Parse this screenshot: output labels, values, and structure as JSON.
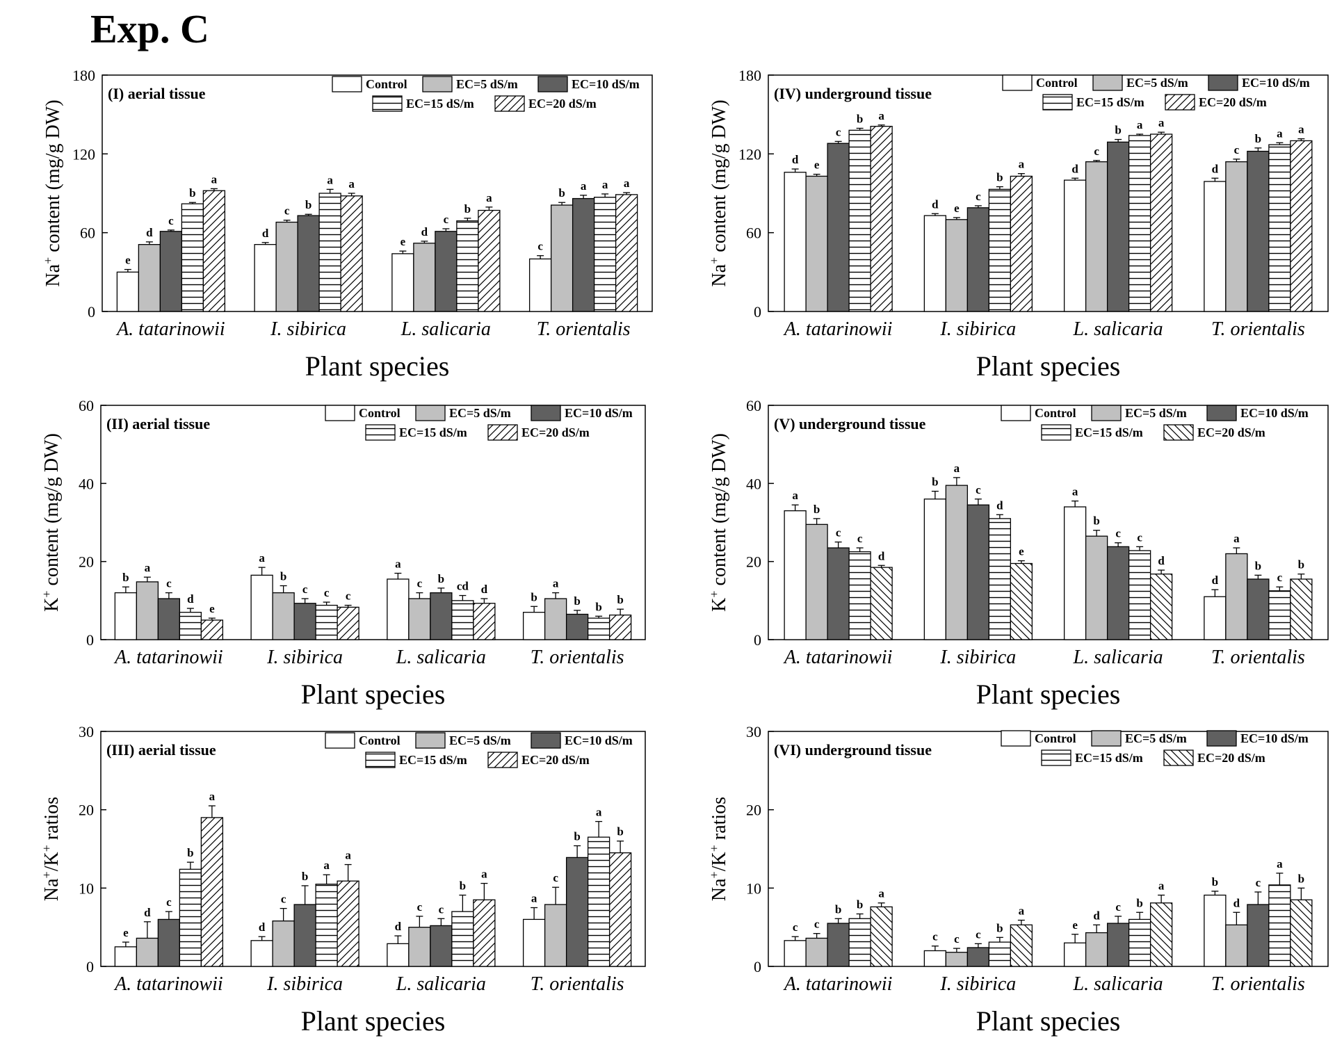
{
  "figure_title": "Exp. C",
  "colors": {
    "control": "#ffffff",
    "ec5": "#c0c0c0",
    "ec10": "#606060",
    "ec15": "#ffffff",
    "ec20": "#ffffff",
    "stroke": "#000000"
  },
  "chart_data": [
    {
      "id": "I",
      "type": "bar",
      "title": "(I) aerial tissue",
      "xlabel": "Plant species",
      "ylabel": "Na+ content (mg/g DW)",
      "ylabel_parts": {
        "prefix": "Na",
        "sup": "+",
        "rest": " content (mg/g DW)"
      },
      "ylim": [
        0,
        180
      ],
      "yticks": [
        0,
        60,
        120,
        180
      ],
      "legend_position": "top-right",
      "categories": [
        "A. tatarinowii",
        "I. sibirica",
        "L. salicaria",
        "T. orientalis"
      ],
      "series": [
        {
          "name": "Control",
          "pattern": "control",
          "values": [
            30,
            51,
            44,
            40
          ],
          "errors": [
            2,
            1.5,
            2,
            2.5
          ],
          "letters": [
            "e",
            "d",
            "e",
            "c"
          ]
        },
        {
          "name": "EC=5 dS/m",
          "pattern": "ec5",
          "values": [
            51,
            68,
            52,
            81
          ],
          "errors": [
            2,
            1.5,
            1.5,
            2
          ],
          "letters": [
            "d",
            "c",
            "d",
            "b"
          ]
        },
        {
          "name": "EC=10 dS/m",
          "pattern": "ec10",
          "values": [
            61,
            73,
            61,
            86
          ],
          "errors": [
            1,
            1,
            2,
            2.5
          ],
          "letters": [
            "c",
            "b",
            "c",
            "a"
          ]
        },
        {
          "name": "EC=15 dS/m",
          "pattern": "ec15",
          "values": [
            82,
            90,
            69,
            87
          ],
          "errors": [
            1,
            3,
            2,
            2.5
          ],
          "letters": [
            "b",
            "a",
            "b",
            "a"
          ]
        },
        {
          "name": "EC=20 dS/m",
          "pattern": "ec20",
          "values": [
            92,
            88,
            77,
            89
          ],
          "errors": [
            1.5,
            2,
            2.5,
            1.5
          ],
          "letters": [
            "a",
            "a",
            "a",
            "a"
          ]
        }
      ]
    },
    {
      "id": "II",
      "type": "bar",
      "title": "(II) aerial tissue",
      "xlabel": "Plant species",
      "ylabel": "K+ content (mg/g DW)",
      "ylabel_parts": {
        "prefix": "K",
        "sup": "+",
        "rest": " content (mg/g DW)"
      },
      "ylim": [
        0,
        60
      ],
      "yticks": [
        0,
        20,
        40,
        60
      ],
      "legend_position": "top-right",
      "categories": [
        "A. tatarinowii",
        "I. sibirica",
        "L. salicaria",
        "T. orientalis"
      ],
      "series": [
        {
          "name": "Control",
          "pattern": "control",
          "values": [
            12,
            16.5,
            15.5,
            7
          ],
          "errors": [
            1.5,
            2,
            1.5,
            1.5
          ],
          "letters": [
            "b",
            "a",
            "a",
            "b"
          ]
        },
        {
          "name": "EC=5 dS/m",
          "pattern": "ec5",
          "values": [
            14.8,
            12,
            10.5,
            10.5
          ],
          "errors": [
            1.2,
            1.8,
            1.5,
            1.5
          ],
          "letters": [
            "a",
            "b",
            "c",
            "a"
          ]
        },
        {
          "name": "EC=10 dS/m",
          "pattern": "ec10",
          "values": [
            10.5,
            9.3,
            12,
            6.5
          ],
          "errors": [
            1.5,
            1.2,
            1.2,
            1
          ],
          "letters": [
            "c",
            "c",
            "b",
            "b"
          ]
        },
        {
          "name": "EC=15 dS/m",
          "pattern": "ec15",
          "values": [
            7,
            8.8,
            10,
            5.5
          ],
          "errors": [
            1,
            0.8,
            1.3,
            0.5
          ],
          "letters": [
            "d",
            "c",
            "cd",
            "b"
          ]
        },
        {
          "name": "EC=20 dS/m",
          "pattern": "ec20",
          "values": [
            5,
            8.3,
            9.3,
            6.3
          ],
          "errors": [
            0.5,
            0.5,
            1.2,
            1.5
          ],
          "letters": [
            "e",
            "c",
            "d",
            "b"
          ]
        }
      ]
    },
    {
      "id": "III",
      "type": "bar",
      "title": "(III) aerial tissue",
      "xlabel": "Plant species",
      "ylabel": "Na+/K+ ratios",
      "ylabel_parts": {
        "prefix": "Na",
        "sup": "+",
        "rest": "/K",
        "sup2": "+",
        "rest2": " ratios"
      },
      "ylim": [
        0,
        30
      ],
      "yticks": [
        0,
        10,
        20,
        30
      ],
      "legend_position": "top-right",
      "categories": [
        "A. tatarinowii",
        "I. sibirica",
        "L. salicaria",
        "T. orientalis"
      ],
      "series": [
        {
          "name": "Control",
          "pattern": "control",
          "values": [
            2.5,
            3.3,
            2.9,
            6
          ],
          "errors": [
            0.6,
            0.5,
            1,
            1.5
          ],
          "letters": [
            "e",
            "d",
            "d",
            "a"
          ]
        },
        {
          "name": "EC=5 dS/m",
          "pattern": "ec5",
          "values": [
            3.6,
            5.8,
            5,
            7.9
          ],
          "errors": [
            2.1,
            1.6,
            1.4,
            2.2
          ],
          "letters": [
            "d",
            "c",
            "c",
            "c"
          ]
        },
        {
          "name": "EC=10 dS/m",
          "pattern": "ec10",
          "values": [
            6,
            7.9,
            5.2,
            13.9
          ],
          "errors": [
            1,
            2.4,
            0.9,
            1.5
          ],
          "letters": [
            "c",
            "b",
            "c",
            "b"
          ]
        },
        {
          "name": "EC=15 dS/m",
          "pattern": "ec15",
          "values": [
            12.4,
            10.5,
            7,
            16.5
          ],
          "errors": [
            0.9,
            1.2,
            2.1,
            2
          ],
          "letters": [
            "b",
            "a",
            "b",
            "a"
          ]
        },
        {
          "name": "EC=20 dS/m",
          "pattern": "ec20",
          "values": [
            19,
            10.9,
            8.5,
            14.5
          ],
          "errors": [
            1.5,
            2.1,
            2.1,
            1.5
          ],
          "letters": [
            "a",
            "a",
            "a",
            "b"
          ]
        }
      ]
    },
    {
      "id": "IV",
      "type": "bar",
      "title": "(IV) underground tissue",
      "xlabel": "Plant species",
      "ylabel": "Na+ content (mg/g DW)",
      "ylabel_parts": {
        "prefix": "Na",
        "sup": "+",
        "rest": " content (mg/g DW)"
      },
      "ylim": [
        0,
        180
      ],
      "yticks": [
        0,
        60,
        120,
        180
      ],
      "legend_position": "top-right",
      "categories": [
        "A. tatarinowii",
        "I. sibirica",
        "L. salicaria",
        "T. orientalis"
      ],
      "series": [
        {
          "name": "Control",
          "pattern": "control",
          "values": [
            106,
            73,
            100,
            99
          ],
          "errors": [
            2.5,
            1.5,
            1.5,
            2.5
          ],
          "letters": [
            "d",
            "d",
            "d",
            "d"
          ]
        },
        {
          "name": "EC=5 dS/m",
          "pattern": "ec5",
          "values": [
            103,
            70,
            114,
            114
          ],
          "errors": [
            1.5,
            1.5,
            1,
            2
          ],
          "letters": [
            "e",
            "e",
            "c",
            "c"
          ]
        },
        {
          "name": "EC=10 dS/m",
          "pattern": "ec10",
          "values": [
            128,
            79,
            129,
            122
          ],
          "errors": [
            1.5,
            1.5,
            2,
            2.5
          ],
          "letters": [
            "c",
            "c",
            "b",
            "b"
          ]
        },
        {
          "name": "EC=15 dS/m",
          "pattern": "ec15",
          "values": [
            138,
            93,
            134,
            127
          ],
          "errors": [
            1.5,
            2,
            1,
            1.5
          ],
          "letters": [
            "b",
            "b",
            "a",
            "a"
          ]
        },
        {
          "name": "EC=20 dS/m",
          "pattern": "ec20",
          "values": [
            141,
            103,
            135,
            130
          ],
          "errors": [
            1,
            2,
            1.5,
            1.5
          ],
          "letters": [
            "a",
            "a",
            "a",
            "a"
          ]
        }
      ]
    },
    {
      "id": "V",
      "type": "bar",
      "title": "(V) underground tissue",
      "xlabel": "Plant species",
      "ylabel": "K+ content (mg/g DW)",
      "ylabel_parts": {
        "prefix": "K",
        "sup": "+",
        "rest": " content (mg/g DW)"
      },
      "ylim": [
        0,
        60
      ],
      "yticks": [
        0,
        20,
        40,
        60
      ],
      "legend_position": "top-right",
      "categories": [
        "A. tatarinowii",
        "I. sibirica",
        "L. salicaria",
        "T. orientalis"
      ],
      "series": [
        {
          "name": "Control",
          "pattern": "control",
          "values": [
            33,
            36,
            34,
            11
          ],
          "errors": [
            1.5,
            2,
            1.5,
            1.8
          ],
          "letters": [
            "a",
            "b",
            "a",
            "d"
          ]
        },
        {
          "name": "EC=5 dS/m",
          "pattern": "ec5",
          "values": [
            29.5,
            39.5,
            26.5,
            22
          ],
          "errors": [
            1.5,
            2,
            1.5,
            1.5
          ],
          "letters": [
            "b",
            "a",
            "b",
            "a"
          ]
        },
        {
          "name": "EC=10 dS/m",
          "pattern": "ec10",
          "values": [
            23.5,
            34.5,
            23.8,
            15.5
          ],
          "errors": [
            1.5,
            1.5,
            1,
            1
          ],
          "letters": [
            "c",
            "c",
            "c",
            "b"
          ]
        },
        {
          "name": "EC=15 dS/m",
          "pattern": "ec15",
          "values": [
            22.5,
            31,
            22.8,
            12.5
          ],
          "errors": [
            1,
            1,
            1,
            1
          ],
          "letters": [
            "c",
            "d",
            "c",
            "c"
          ]
        },
        {
          "name": "EC=20 dS/m",
          "pattern": "ec20",
          "values": [
            18.5,
            19.5,
            16.8,
            15.5
          ],
          "errors": [
            0.5,
            0.7,
            1,
            1.3
          ],
          "letters": [
            "d",
            "e",
            "d",
            "b"
          ]
        }
      ]
    },
    {
      "id": "VI",
      "type": "bar",
      "title": "(VI) underground tissue",
      "xlabel": "Plant species",
      "ylabel": "Na+/K+ ratios",
      "ylabel_parts": {
        "prefix": "Na",
        "sup": "+",
        "rest": "/K",
        "sup2": "+",
        "rest2": " ratios"
      },
      "ylim": [
        0,
        30
      ],
      "yticks": [
        0,
        10,
        20,
        30
      ],
      "legend_position": "top-right",
      "categories": [
        "A. tatarinowii",
        "I. sibirica",
        "L. salicaria",
        "T. orientalis"
      ],
      "series": [
        {
          "name": "Control",
          "pattern": "control",
          "values": [
            3.3,
            2,
            3,
            9.1
          ],
          "errors": [
            0.5,
            0.6,
            1.1,
            0.5
          ],
          "letters": [
            "c",
            "c",
            "e",
            "b"
          ]
        },
        {
          "name": "EC=5 dS/m",
          "pattern": "ec5",
          "values": [
            3.6,
            1.8,
            4.3,
            5.3
          ],
          "errors": [
            0.6,
            0.5,
            1,
            1.6
          ],
          "letters": [
            "c",
            "c",
            "d",
            "d"
          ]
        },
        {
          "name": "EC=10 dS/m",
          "pattern": "ec10",
          "values": [
            5.5,
            2.4,
            5.5,
            7.9
          ],
          "errors": [
            0.6,
            0.5,
            0.9,
            1.6
          ],
          "letters": [
            "b",
            "c",
            "c",
            "c"
          ]
        },
        {
          "name": "EC=15 dS/m",
          "pattern": "ec15",
          "values": [
            6.1,
            3.1,
            6,
            10.4
          ],
          "errors": [
            0.6,
            0.6,
            0.9,
            1.5
          ],
          "letters": [
            "b",
            "b",
            "b",
            "a"
          ]
        },
        {
          "name": "EC=20 dS/m",
          "pattern": "ec20",
          "values": [
            7.6,
            5.3,
            8.1,
            8.5
          ],
          "errors": [
            0.5,
            0.6,
            1,
            1.5
          ],
          "letters": [
            "a",
            "a",
            "a",
            "b"
          ]
        }
      ]
    }
  ]
}
